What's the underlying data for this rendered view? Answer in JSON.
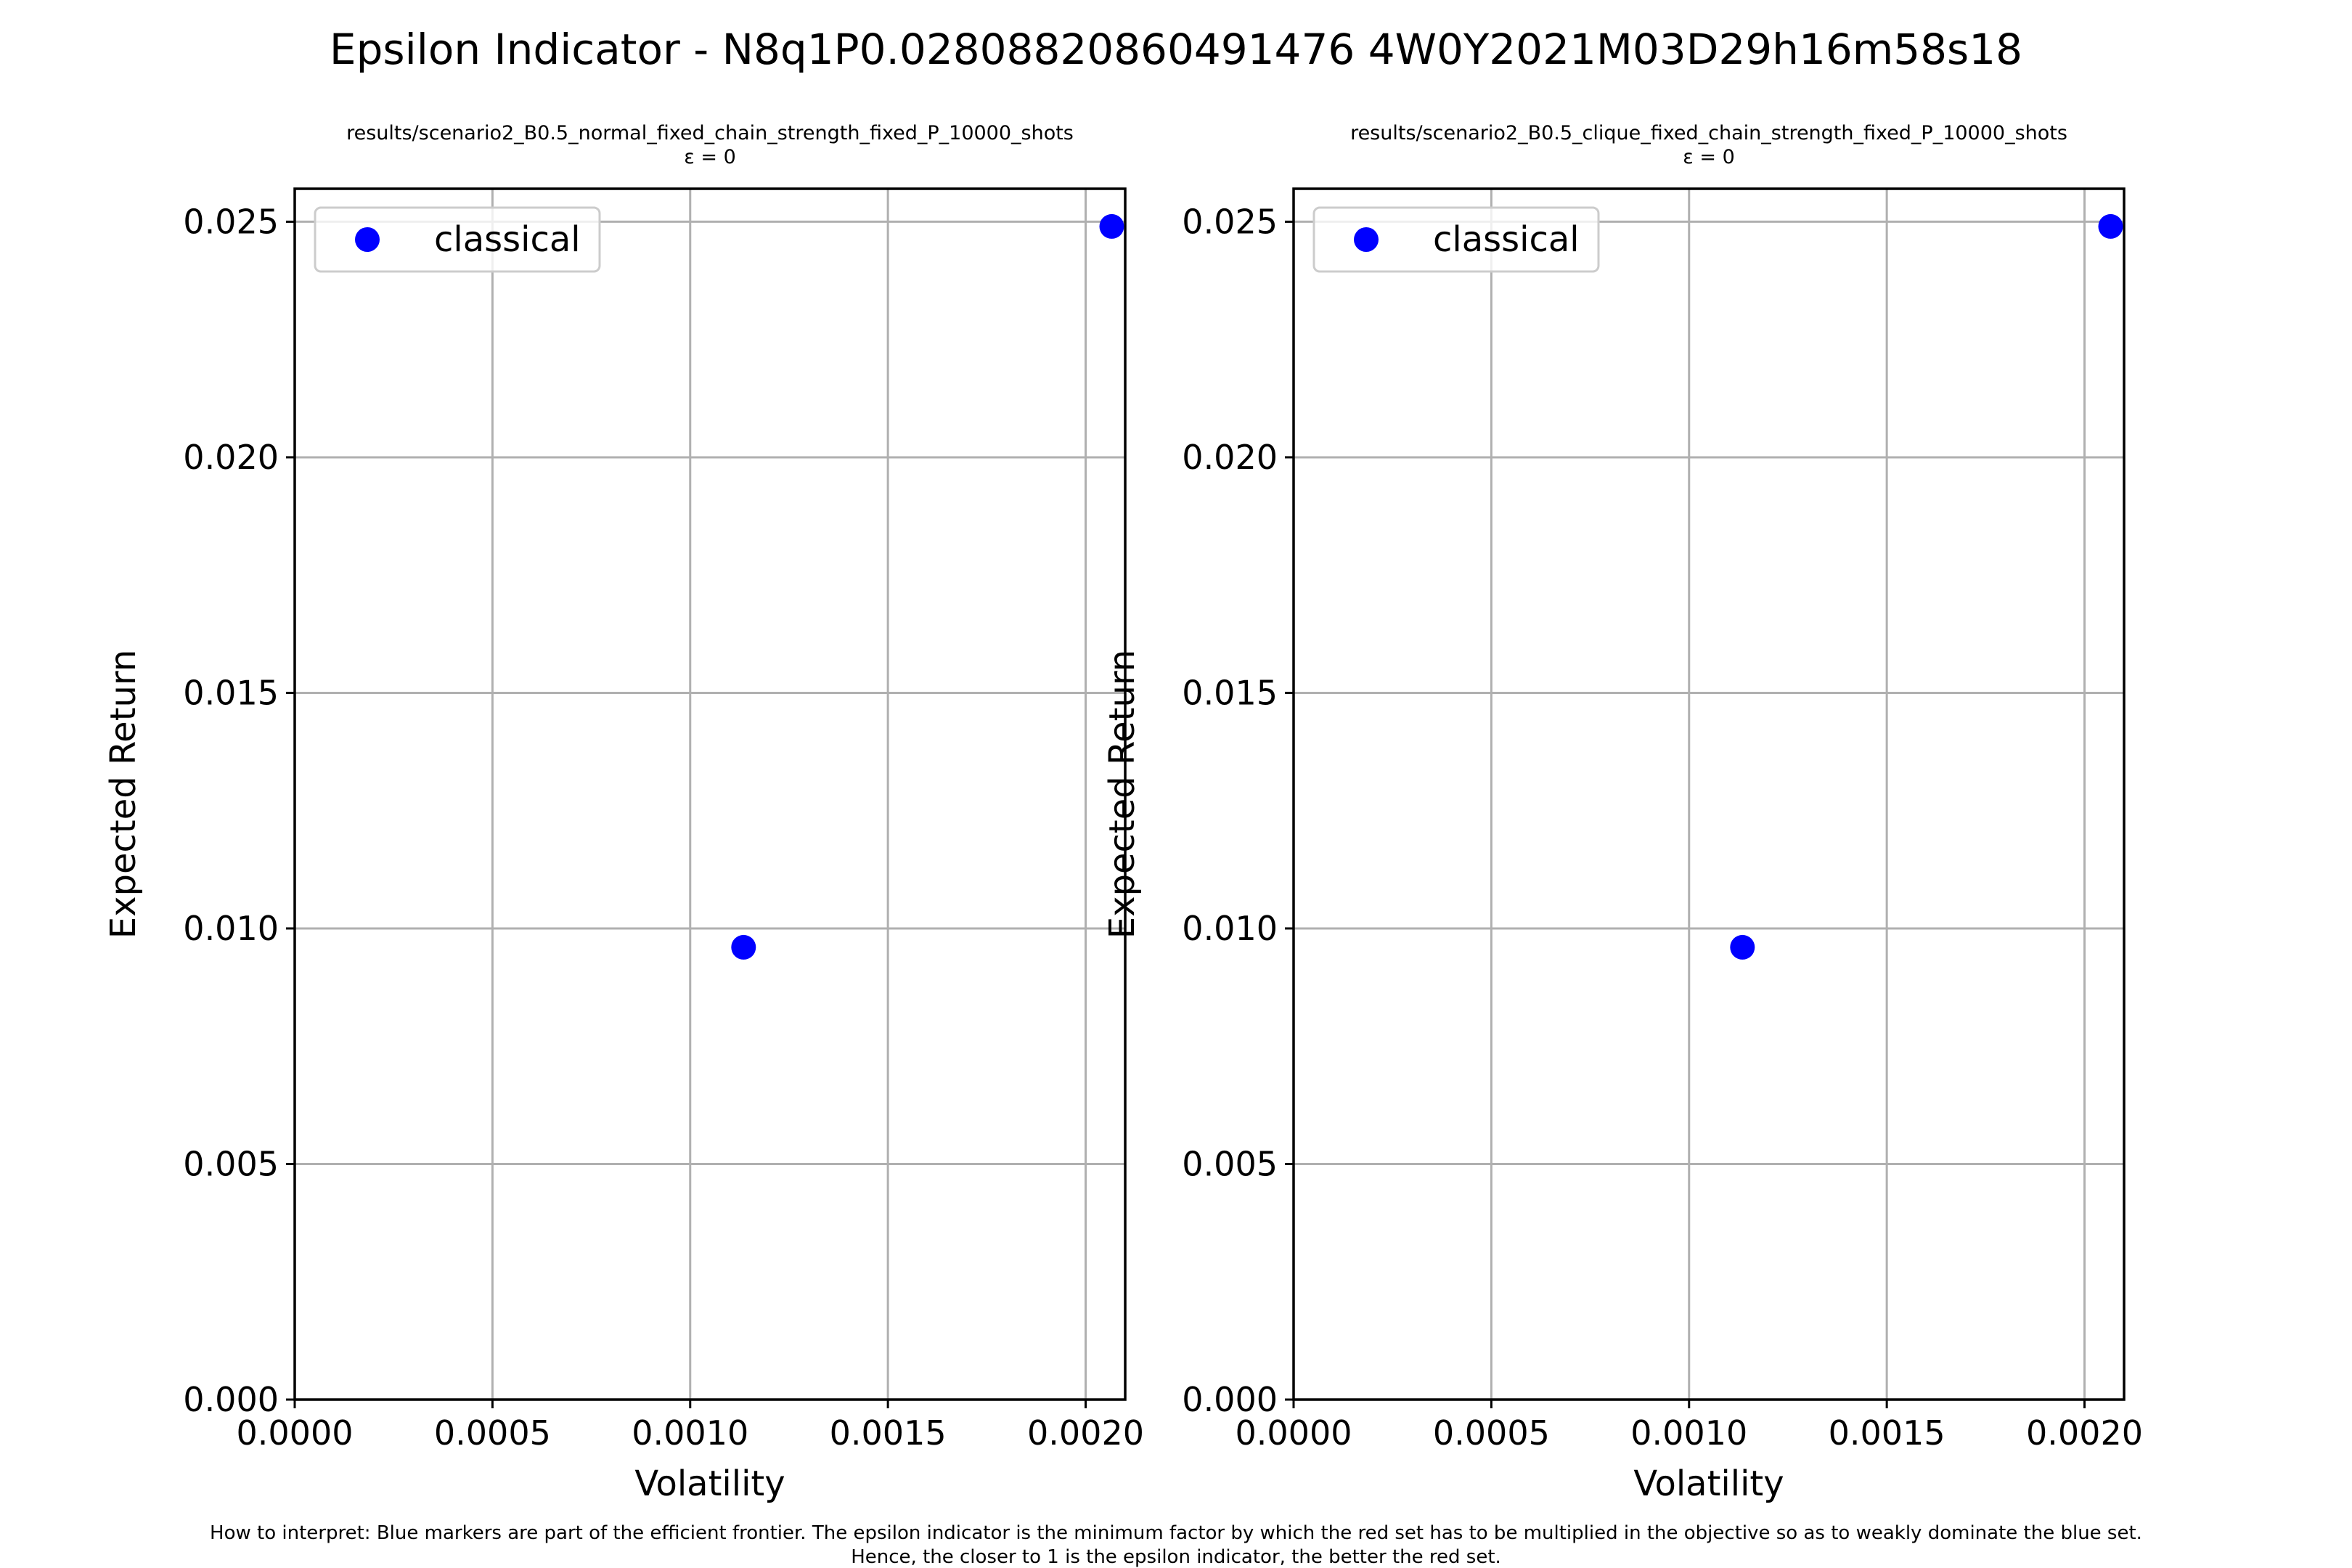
{
  "title": "Epsilon Indicator - N8q1P0.02808820860491476 4W0Y2021M03D29h16m58s18",
  "footnote": {
    "line1": "How to interpret: Blue markers are part of the efficient frontier. The epsilon indicator is the minimum factor by which the red set has to be multiplied in the objective so as to weakly dominate the blue set.",
    "line2": "Hence, the closer to 1 is the epsilon indicator, the better the red set."
  },
  "colors": {
    "series": "#0000ff",
    "grid": "#b0b0b0",
    "axis": "#000000"
  },
  "chart_data": [
    {
      "type": "scatter",
      "title": "results/scenario2_B0.5_normal_fixed_chain_strength_fixed_P_10000_shots",
      "subtitle": "ε = 0",
      "xlabel": "Volatility",
      "ylabel": "Expected Return",
      "xlim": [
        0,
        0.0021
      ],
      "ylim": [
        0,
        0.0257
      ],
      "xticks": [
        "0.0000",
        "0.0005",
        "0.0010",
        "0.0015",
        "0.0020"
      ],
      "yticks": [
        "0.000",
        "0.005",
        "0.010",
        "0.015",
        "0.020",
        "0.025"
      ],
      "grid": true,
      "legend": "upper-left",
      "series": [
        {
          "name": "classical",
          "color": "#0000ff",
          "points": [
            {
              "x": 0.001135,
              "y": 0.0096
            },
            {
              "x": 0.002066,
              "y": 0.0249
            }
          ]
        }
      ]
    },
    {
      "type": "scatter",
      "title": "results/scenario2_B0.5_clique_fixed_chain_strength_fixed_P_10000_shots",
      "subtitle": "ε = 0",
      "xlabel": "Volatility",
      "ylabel": "Expected Return",
      "xlim": [
        0,
        0.0021
      ],
      "ylim": [
        0,
        0.0257
      ],
      "xticks": [
        "0.0000",
        "0.0005",
        "0.0010",
        "0.0015",
        "0.0020"
      ],
      "yticks": [
        "0.000",
        "0.005",
        "0.010",
        "0.015",
        "0.020",
        "0.025"
      ],
      "grid": true,
      "legend": "upper-left",
      "series": [
        {
          "name": "classical",
          "color": "#0000ff",
          "points": [
            {
              "x": 0.001135,
              "y": 0.0096
            },
            {
              "x": 0.002066,
              "y": 0.0249
            }
          ]
        }
      ]
    }
  ]
}
